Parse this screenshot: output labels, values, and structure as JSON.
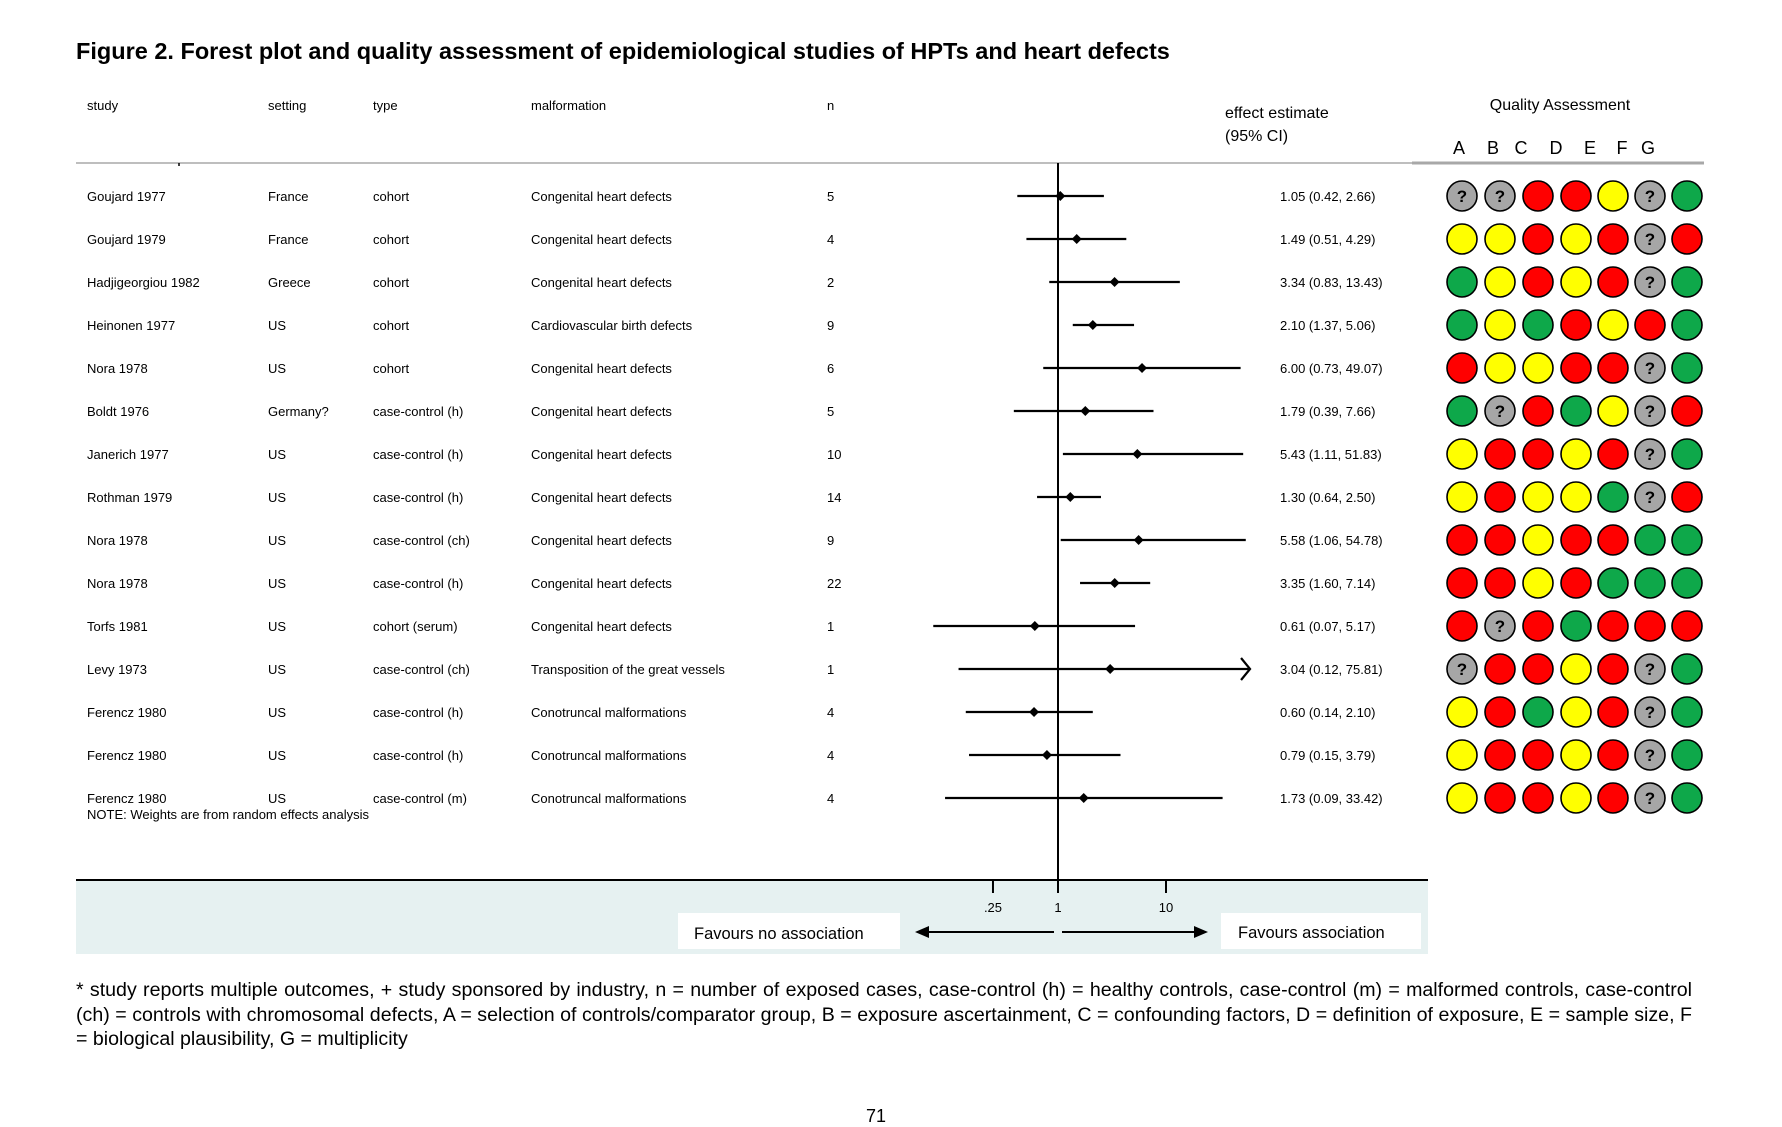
{
  "figure": {
    "title": "Figure 2. Forest plot and quality assessment of epidemiological studies of HPTs and heart defects",
    "footnote": "* study reports multiple outcomes, + study sponsored by industry, n = number of exposed cases, case-control (h) = healthy controls, case-control (m) = malformed controls, case-control (ch) = controls with chromosomal defects, A = selection of controls/comparator group, B = exposure ascertainment, C = confounding factors, D = definition of exposure, E = sample size, F = biological plausibility, G = multiplicity",
    "page_number": "71"
  },
  "colors": {
    "green": "#0ea84a",
    "yellow": "#ffff00",
    "red": "#ff0000",
    "grey": "#a6a6a6",
    "axis_band": "#e6f1f1"
  },
  "chart_data": {
    "type": "forest",
    "title": "Figure 2. Forest plot and quality assessment of epidemiological studies of HPTs and heart defects",
    "x_scale": "log",
    "x_ticks": [
      {
        "value": 0.25,
        "label": ".25"
      },
      {
        "value": 1,
        "label": "1"
      },
      {
        "value": 10,
        "label": "10"
      }
    ],
    "x_clip_max": 60,
    "reference_line": 1,
    "columns": {
      "study": "study",
      "setting": "setting",
      "type": "type",
      "malformation": "malformation",
      "n": "n",
      "effect_line1": "effect estimate",
      "effect_line2": "(95% CI)"
    },
    "qa_title": "Quality Assessment",
    "qa_headers": [
      "A",
      "B",
      "C",
      "D",
      "E",
      "F",
      "G"
    ],
    "left_label": "Favours no association",
    "right_label": "Favours association",
    "note": "NOTE: Weights are from random effects analysis",
    "rows": [
      {
        "study": "Goujard 1977",
        "setting": "France",
        "type": "cohort",
        "malformation": "Congenital heart defects",
        "n": "5",
        "est": 1.05,
        "lo": 0.42,
        "hi": 2.66,
        "label": "1.05 (0.42, 2.66)",
        "qa": [
          "grey",
          "grey",
          "red",
          "red",
          "yellow",
          "grey",
          "green"
        ]
      },
      {
        "study": "Goujard 1979",
        "setting": "France",
        "type": "cohort",
        "malformation": "Congenital heart defects",
        "n": "4",
        "est": 1.49,
        "lo": 0.51,
        "hi": 4.29,
        "label": "1.49 (0.51, 4.29)",
        "qa": [
          "yellow",
          "yellow",
          "red",
          "yellow",
          "red",
          "grey",
          "red"
        ]
      },
      {
        "study": "Hadjigeorgiou 1982",
        "setting": "Greece",
        "type": "cohort",
        "malformation": "Congenital heart defects",
        "n": "2",
        "est": 3.34,
        "lo": 0.83,
        "hi": 13.43,
        "label": "3.34 (0.83, 13.43)",
        "qa": [
          "green",
          "yellow",
          "red",
          "yellow",
          "red",
          "grey",
          "green"
        ]
      },
      {
        "study": "Heinonen 1977",
        "setting": "US",
        "type": "cohort",
        "malformation": "Cardiovascular birth defects",
        "n": "9",
        "est": 2.1,
        "lo": 1.37,
        "hi": 5.06,
        "label": "2.10 (1.37, 5.06)",
        "qa": [
          "green",
          "yellow",
          "green",
          "red",
          "yellow",
          "red",
          "green"
        ]
      },
      {
        "study": "Nora 1978",
        "setting": "US",
        "type": "cohort",
        "malformation": "Congenital heart defects",
        "n": "6",
        "est": 6.0,
        "lo": 0.73,
        "hi": 49.07,
        "label": "6.00 (0.73, 49.07)",
        "qa": [
          "red",
          "yellow",
          "yellow",
          "red",
          "red",
          "grey",
          "green"
        ]
      },
      {
        "study": "Boldt 1976",
        "setting": "Germany?",
        "type": "case-control (h)",
        "malformation": "Congenital heart defects",
        "n": "5",
        "est": 1.79,
        "lo": 0.39,
        "hi": 7.66,
        "label": "1.79 (0.39, 7.66)",
        "qa": [
          "green",
          "grey",
          "red",
          "green",
          "yellow",
          "grey",
          "red"
        ]
      },
      {
        "study": "Janerich 1977",
        "setting": "US",
        "type": "case-control (h)",
        "malformation": "Congenital heart defects",
        "n": "10",
        "est": 5.43,
        "lo": 1.11,
        "hi": 51.83,
        "label": "5.43 (1.11, 51.83)",
        "qa": [
          "yellow",
          "red",
          "red",
          "yellow",
          "red",
          "grey",
          "green"
        ]
      },
      {
        "study": "Rothman 1979",
        "setting": "US",
        "type": "case-control (h)",
        "malformation": "Congenital heart defects",
        "n": "14",
        "est": 1.3,
        "lo": 0.64,
        "hi": 2.5,
        "label": "1.30 (0.64, 2.50)",
        "qa": [
          "yellow",
          "red",
          "yellow",
          "yellow",
          "green",
          "grey",
          "red"
        ]
      },
      {
        "study": "Nora 1978",
        "setting": "US",
        "type": "case-control (ch)",
        "malformation": "Congenital heart defects",
        "n": "9",
        "est": 5.58,
        "lo": 1.06,
        "hi": 54.78,
        "label": "5.58 (1.06, 54.78)",
        "qa": [
          "red",
          "red",
          "yellow",
          "red",
          "red",
          "green",
          "green"
        ]
      },
      {
        "study": "Nora 1978",
        "setting": "US",
        "type": "case-control (h)",
        "malformation": "Congenital heart defects",
        "n": "22",
        "est": 3.35,
        "lo": 1.6,
        "hi": 7.14,
        "label": "3.35 (1.60, 7.14)",
        "qa": [
          "red",
          "red",
          "yellow",
          "red",
          "green",
          "green",
          "green"
        ]
      },
      {
        "study": "Torfs 1981",
        "setting": "US",
        "type": "cohort (serum)",
        "malformation": "Congenital heart defects",
        "n": "1",
        "est": 0.61,
        "lo": 0.07,
        "hi": 5.17,
        "label": "0.61 (0.07, 5.17)",
        "qa": [
          "red",
          "grey",
          "red",
          "green",
          "red",
          "red",
          "red"
        ]
      },
      {
        "study": "Levy 1973",
        "setting": "US",
        "type": "case-control (ch)",
        "malformation": "Transposition of the great vessels",
        "n": "1",
        "est": 3.04,
        "lo": 0.12,
        "hi": 75.81,
        "label": "3.04 (0.12, 75.81)",
        "qa": [
          "grey",
          "red",
          "red",
          "yellow",
          "red",
          "grey",
          "green"
        ]
      },
      {
        "study": "Ferencz 1980",
        "setting": "US",
        "type": "case-control (h)",
        "malformation": "Conotruncal malformations",
        "n": "4",
        "est": 0.6,
        "lo": 0.14,
        "hi": 2.1,
        "label": "0.60 (0.14, 2.10)",
        "qa": [
          "yellow",
          "red",
          "green",
          "yellow",
          "red",
          "grey",
          "green"
        ]
      },
      {
        "study": "Ferencz 1980",
        "setting": "US",
        "type": "case-control (h)",
        "malformation": "Conotruncal malformations",
        "n": "4",
        "est": 0.79,
        "lo": 0.15,
        "hi": 3.79,
        "label": "0.79 (0.15, 3.79)",
        "qa": [
          "yellow",
          "red",
          "red",
          "yellow",
          "red",
          "grey",
          "green"
        ]
      },
      {
        "study": "Ferencz 1980",
        "setting": "US",
        "type": "case-control (m)",
        "malformation": "Conotruncal malformations",
        "n": "4",
        "est": 1.73,
        "lo": 0.09,
        "hi": 33.42,
        "label": "1.73 (0.09, 33.42)",
        "qa": [
          "yellow",
          "red",
          "red",
          "yellow",
          "red",
          "grey",
          "green"
        ]
      }
    ]
  }
}
